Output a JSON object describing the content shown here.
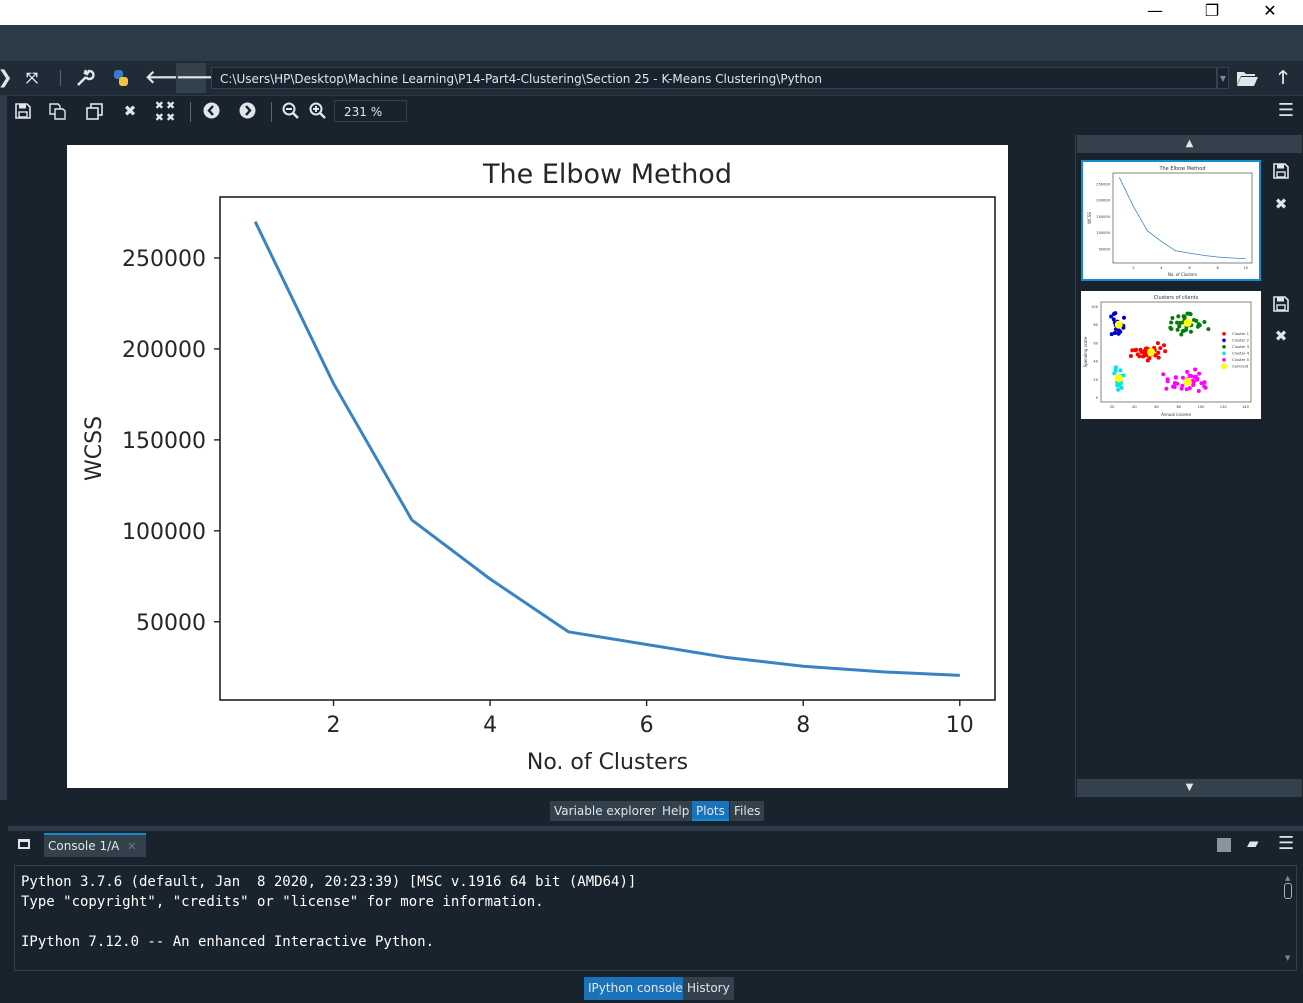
{
  "window": {
    "minimize": "—",
    "maximize": "❐",
    "close": "✕"
  },
  "toolbar": {
    "path": "C:\\Users\\HP\\Desktop\\Machine Learning\\P14-Part4-Clustering\\Section 25 - K-Means Clustering\\Python"
  },
  "plots_toolbar": {
    "zoom": "231 %"
  },
  "chart_data": {
    "type": "line",
    "title": "The Elbow Method",
    "xlabel": "No. of Clusters",
    "ylabel": "WCSS",
    "x": [
      1,
      2,
      3,
      4,
      5,
      6,
      7,
      8,
      9,
      10
    ],
    "y": [
      270000,
      181000,
      106000,
      73500,
      44500,
      37500,
      30500,
      25500,
      22500,
      20500
    ],
    "xticks": [
      2,
      4,
      6,
      8,
      10
    ],
    "yticks": [
      50000,
      100000,
      150000,
      200000,
      250000
    ],
    "xtick_labels": [
      "2",
      "4",
      "6",
      "8",
      "10"
    ],
    "ytick_labels": [
      "50000",
      "100000",
      "150000",
      "200000",
      "250000"
    ],
    "xlim": [
      0.55,
      10.45
    ],
    "ylim": [
      7000,
      283500
    ],
    "line_color": "#3a83c2"
  },
  "thumbnails": [
    {
      "title": "The Elbow Method",
      "xlabel": "No. of Clusters",
      "ylabel": "WCSS",
      "x": [
        1,
        2,
        3,
        4,
        5,
        6,
        7,
        8,
        9,
        10
      ],
      "y": [
        270000,
        181000,
        106000,
        73500,
        44500,
        37500,
        30500,
        25500,
        22500,
        20500
      ],
      "xtick_labels": [
        "2",
        "4",
        "6",
        "8",
        "10"
      ],
      "ytick_labels": [
        "50000",
        "100000",
        "150000",
        "200000",
        "250000"
      ]
    },
    {
      "title": "Clusters of clients",
      "xlabel": "Annual income",
      "ylabel": "Spending score",
      "xtick_labels": [
        "20",
        "40",
        "60",
        "80",
        "100",
        "120",
        "140"
      ],
      "ytick_labels": [
        "0",
        "20",
        "40",
        "60",
        "80",
        "100"
      ],
      "legend": [
        "Cluster 1",
        "Cluster 2",
        "Cluster 3",
        "Cluster 4",
        "Cluster 5",
        "Centroid"
      ],
      "colors": [
        "#ff0000",
        "#0000cc",
        "#008000",
        "#00e5e5",
        "#ff00ff",
        "#ffff00"
      ]
    }
  ],
  "tabs": [
    "Variable explorer",
    "Help",
    "Plots",
    "Files"
  ],
  "active_tab": "Plots",
  "console": {
    "tab_label": "Console 1/A",
    "tab_close": "✕",
    "lines": [
      "Python 3.7.6 (default, Jan  8 2020, 20:23:39) [MSC v.1916 64 bit (AMD64)]",
      "Type \"copyright\", \"credits\" or \"license\" for more information.",
      "",
      "IPython 7.12.0 -- An enhanced Interactive Python."
    ]
  },
  "bottom_tabs": [
    "IPython console",
    "History"
  ]
}
